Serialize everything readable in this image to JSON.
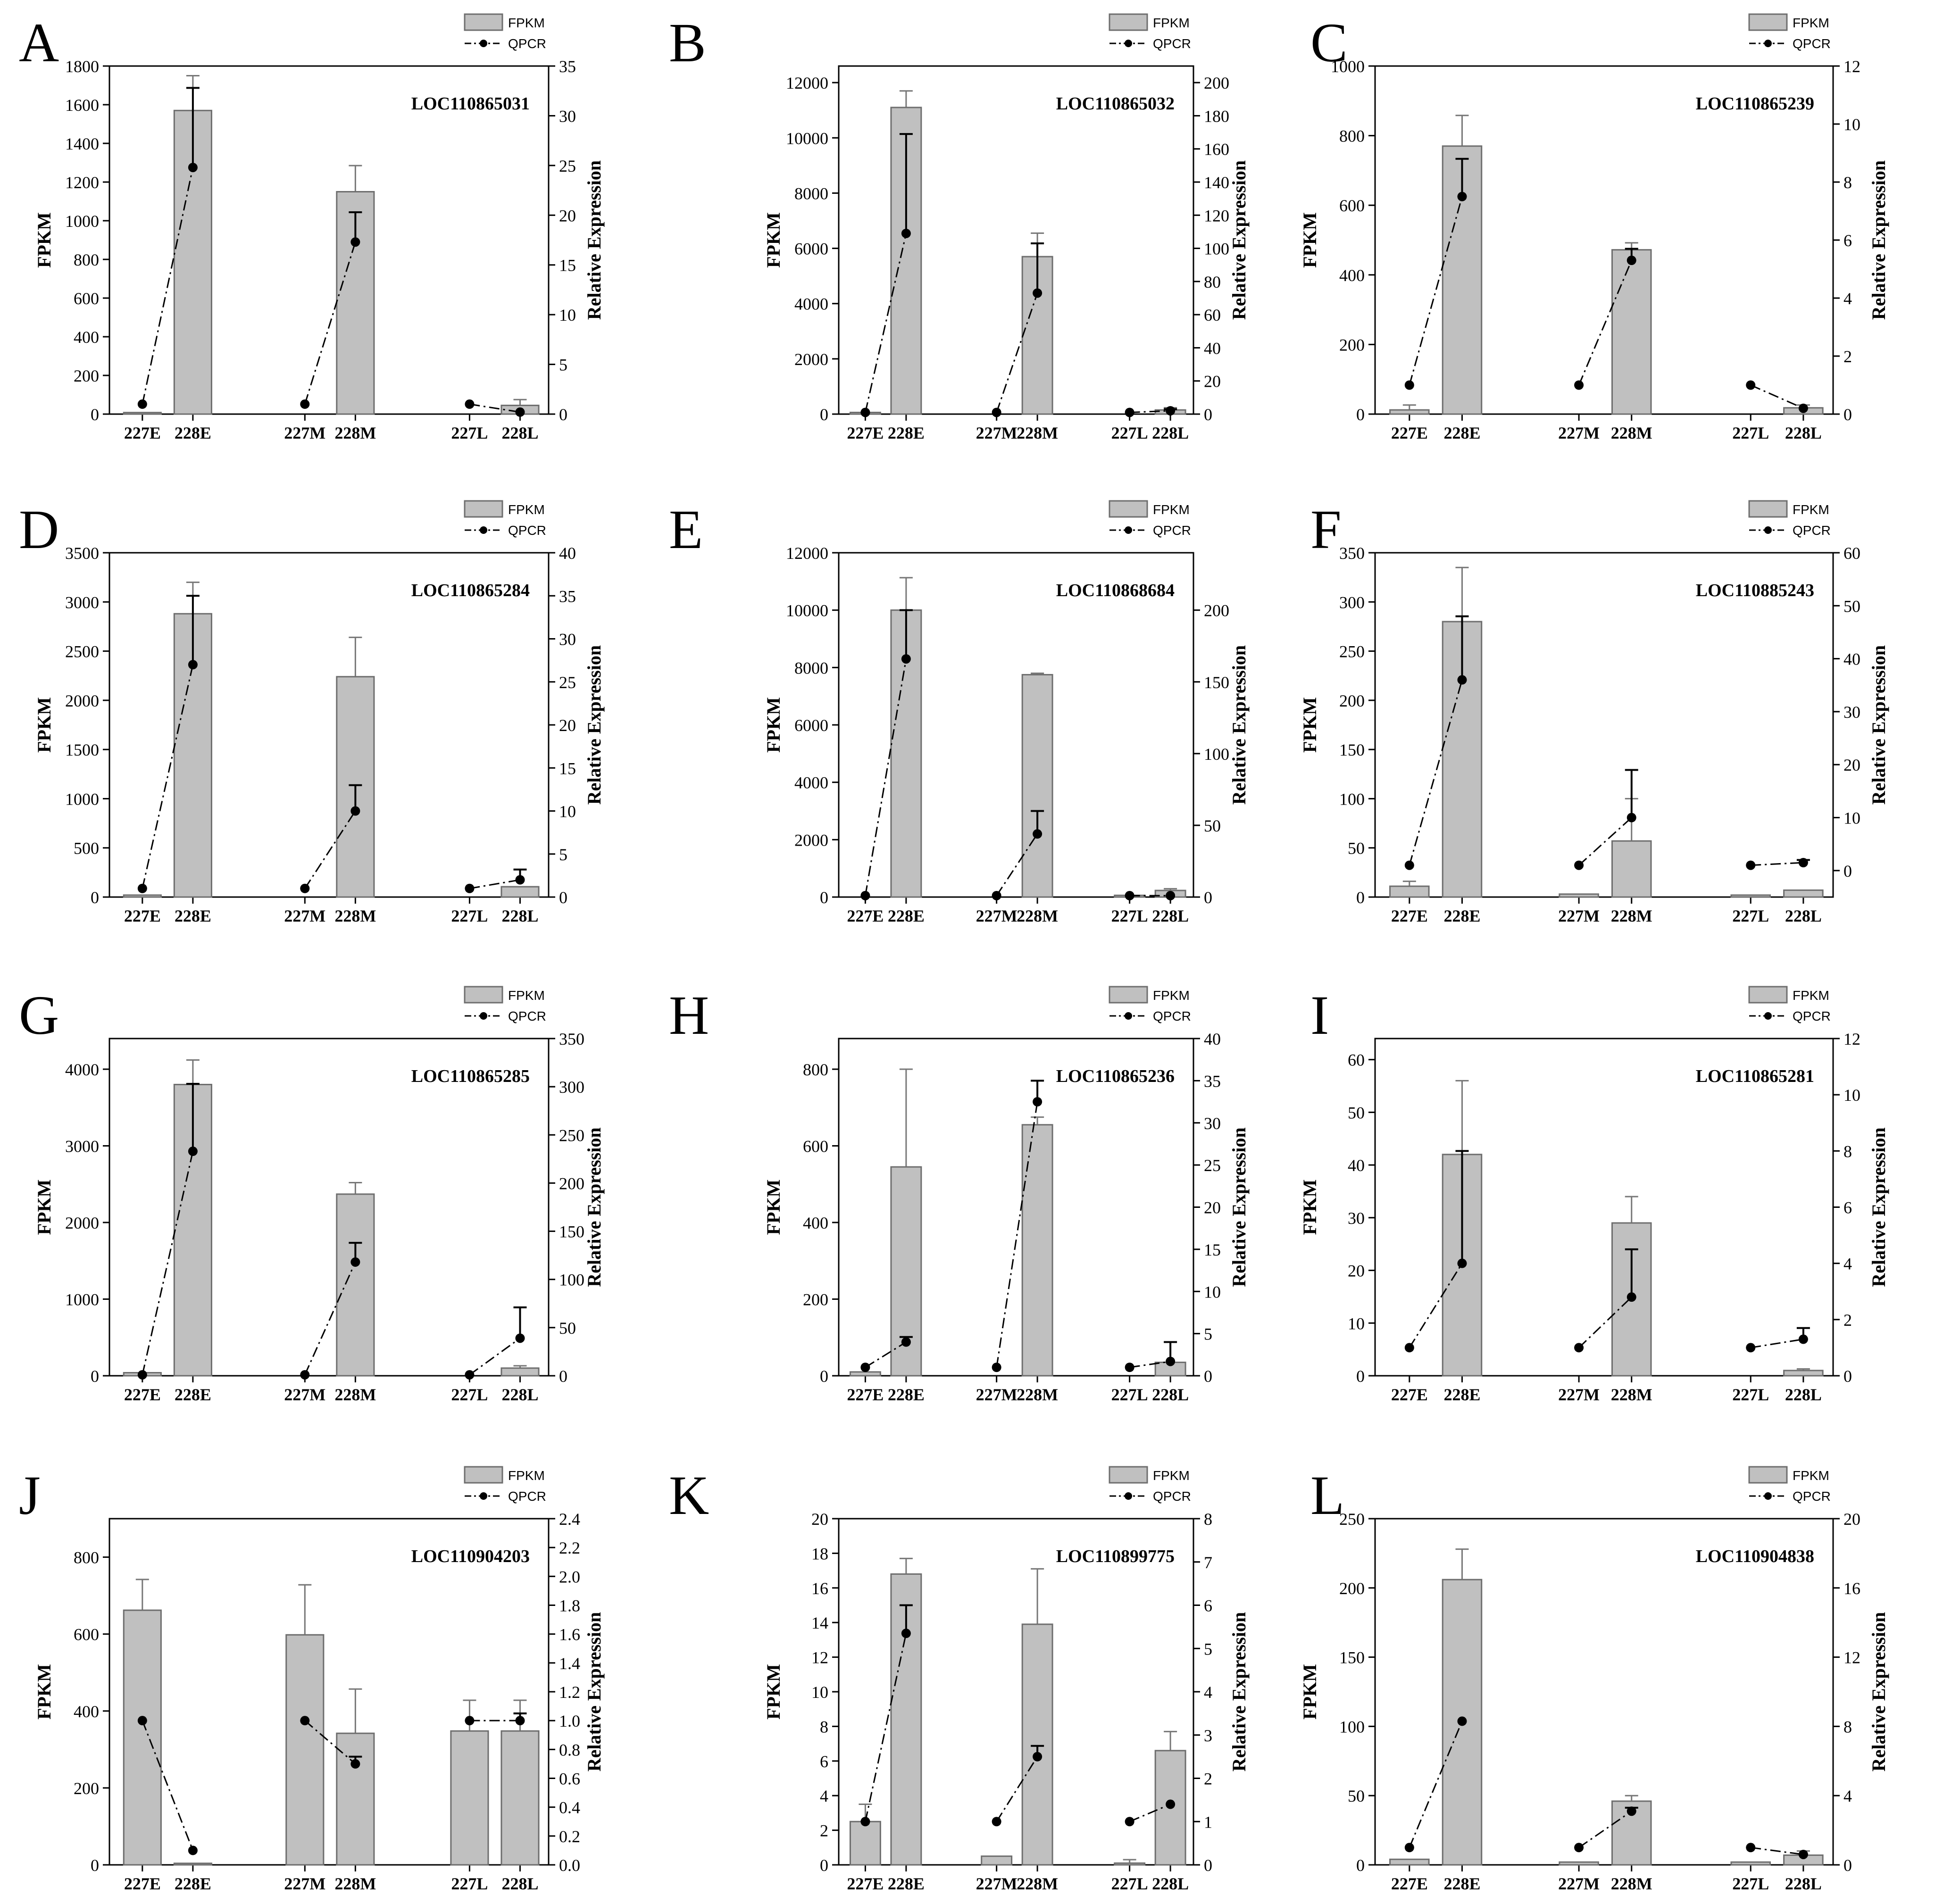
{
  "figure": {
    "legend": {
      "bar_label": "FPKM",
      "line_label": "QPCR"
    },
    "left_axis_label": "FPKM",
    "right_axis_label": "Relative Expression",
    "colors": {
      "bar_fill": "#c0c0c0",
      "bar_stroke": "#6e6e6e",
      "line": "#000000"
    }
  },
  "chart_data": [
    {
      "type": "bar",
      "panel": "A",
      "title": "LOC110865031",
      "categories": [
        "227E",
        "228E",
        "227M",
        "228M",
        "227L",
        "228L"
      ],
      "series": [
        {
          "name": "FPKM",
          "axis": "left",
          "values": [
            8,
            1570,
            0,
            1150,
            0,
            45
          ],
          "errors": [
            0,
            180,
            0,
            135,
            0,
            30
          ]
        },
        {
          "name": "QPCR",
          "axis": "right",
          "type": "line",
          "values": [
            1,
            24.8,
            1,
            17.3,
            1,
            0.2
          ],
          "errors": [
            0,
            8,
            0,
            3,
            0,
            0
          ]
        }
      ],
      "ylim_left": [
        0,
        1800
      ],
      "yticks_left": [
        0,
        200,
        400,
        600,
        800,
        1000,
        1200,
        1400,
        1600,
        1800
      ],
      "ylim_right": [
        0,
        35
      ],
      "yticks_right": [
        0,
        5,
        10,
        15,
        20,
        25,
        30,
        35
      ]
    },
    {
      "type": "bar",
      "panel": "B",
      "title": "LOC110865032",
      "categories": [
        "227E",
        "228E",
        "227M",
        "228M",
        "227L",
        "228L"
      ],
      "series": [
        {
          "name": "FPKM",
          "axis": "left",
          "values": [
            60,
            11100,
            0,
            5700,
            0,
            150
          ],
          "errors": [
            0,
            600,
            0,
            850,
            0,
            80
          ]
        },
        {
          "name": "QPCR",
          "axis": "right",
          "type": "line",
          "values": [
            1,
            109,
            1,
            73,
            1,
            2
          ],
          "errors": [
            0,
            60,
            0,
            30,
            0,
            1
          ]
        }
      ],
      "ylim_left": [
        0,
        12600
      ],
      "yticks_left": [
        0,
        2000,
        4000,
        6000,
        8000,
        10000,
        12000
      ],
      "ylim_right": [
        0,
        210
      ],
      "yticks_right": [
        0,
        20,
        40,
        60,
        80,
        100,
        120,
        140,
        160,
        180,
        200
      ]
    },
    {
      "type": "bar",
      "panel": "C",
      "title": "LOC110865239",
      "categories": [
        "227E",
        "228E",
        "227M",
        "228M",
        "227L",
        "228L"
      ],
      "series": [
        {
          "name": "FPKM",
          "axis": "left",
          "values": [
            12,
            770,
            0,
            472,
            0,
            18
          ],
          "errors": [
            14,
            88,
            0,
            20,
            0,
            8
          ]
        },
        {
          "name": "QPCR",
          "axis": "right",
          "type": "line",
          "values": [
            1,
            7.5,
            1,
            5.3,
            1,
            0.2
          ],
          "errors": [
            0,
            1.3,
            0,
            0.4,
            0,
            0
          ]
        }
      ],
      "ylim_left": [
        0,
        1000
      ],
      "yticks_left": [
        0,
        200,
        400,
        600,
        800,
        1000
      ],
      "ylim_right": [
        0,
        12
      ],
      "yticks_right": [
        0,
        2,
        4,
        6,
        8,
        10,
        12
      ]
    },
    {
      "type": "bar",
      "panel": "D",
      "title": "LOC110865284",
      "categories": [
        "227E",
        "228E",
        "227M",
        "228M",
        "227L",
        "228L"
      ],
      "series": [
        {
          "name": "FPKM",
          "axis": "left",
          "values": [
            20,
            2880,
            0,
            2240,
            0,
            105
          ],
          "errors": [
            0,
            320,
            0,
            400,
            0,
            0
          ]
        },
        {
          "name": "QPCR",
          "axis": "right",
          "type": "line",
          "values": [
            1,
            27,
            1,
            10,
            1,
            2
          ],
          "errors": [
            0,
            8,
            0,
            3,
            0,
            1.2
          ]
        }
      ],
      "ylim_left": [
        0,
        3500
      ],
      "yticks_left": [
        0,
        500,
        1000,
        1500,
        2000,
        2500,
        3000,
        3500
      ],
      "ylim_right": [
        0,
        40
      ],
      "yticks_right": [
        0,
        5,
        10,
        15,
        20,
        25,
        30,
        35,
        40
      ]
    },
    {
      "type": "bar",
      "panel": "E",
      "title": "LOC110868684",
      "categories": [
        "227E",
        "228E",
        "227M",
        "228M",
        "227L",
        "228L"
      ],
      "series": [
        {
          "name": "FPKM",
          "axis": "left",
          "values": [
            0,
            10000,
            0,
            7750,
            60,
            230
          ],
          "errors": [
            0,
            1130,
            0,
            50,
            0,
            60
          ]
        },
        {
          "name": "QPCR",
          "axis": "right",
          "type": "line",
          "values": [
            1,
            166,
            1,
            44,
            1,
            1
          ],
          "errors": [
            0,
            34,
            0,
            16,
            0,
            0
          ]
        }
      ],
      "ylim_left": [
        0,
        12000
      ],
      "yticks_left": [
        0,
        2000,
        4000,
        6000,
        8000,
        10000,
        12000
      ],
      "ylim_right": [
        0,
        240
      ],
      "yticks_right": [
        0,
        50,
        100,
        150,
        200
      ]
    },
    {
      "type": "bar",
      "panel": "F",
      "title": "LOC110885243",
      "categories": [
        "227E",
        "228E",
        "227M",
        "228M",
        "227L",
        "228L"
      ],
      "series": [
        {
          "name": "FPKM",
          "axis": "left",
          "values": [
            11,
            280,
            3,
            57,
            2,
            7
          ],
          "errors": [
            5,
            55,
            0,
            43,
            0,
            0
          ]
        },
        {
          "name": "QPCR",
          "axis": "right",
          "type": "line",
          "values": [
            1,
            36,
            1,
            10,
            1,
            1.5
          ],
          "errors": [
            0,
            12,
            0,
            9,
            0,
            0.5
          ]
        }
      ],
      "ylim_left": [
        0,
        350
      ],
      "yticks_left": [
        0,
        50,
        100,
        150,
        200,
        250,
        300,
        350
      ],
      "ylim_right": [
        -5,
        60
      ],
      "yticks_right": [
        0,
        10,
        20,
        30,
        40,
        50,
        60
      ]
    },
    {
      "type": "bar",
      "panel": "G",
      "title": "LOC110865285",
      "categories": [
        "227E",
        "228E",
        "227M",
        "228M",
        "227L",
        "228L"
      ],
      "series": [
        {
          "name": "FPKM",
          "axis": "left",
          "values": [
            40,
            3800,
            0,
            2370,
            0,
            100
          ],
          "errors": [
            0,
            320,
            0,
            150,
            0,
            30
          ]
        },
        {
          "name": "QPCR",
          "axis": "right",
          "type": "line",
          "values": [
            1,
            233,
            1,
            118,
            1,
            39
          ],
          "errors": [
            0,
            70,
            0,
            20,
            0,
            32
          ]
        }
      ],
      "ylim_left": [
        0,
        4400
      ],
      "yticks_left": [
        0,
        1000,
        2000,
        3000,
        4000
      ],
      "ylim_right": [
        0,
        350
      ],
      "yticks_right": [
        0,
        50,
        100,
        150,
        200,
        250,
        300,
        350
      ]
    },
    {
      "type": "bar",
      "panel": "H",
      "title": "LOC110865236",
      "categories": [
        "227E",
        "228E",
        "227M",
        "228M",
        "227L",
        "228L"
      ],
      "series": [
        {
          "name": "FPKM",
          "axis": "left",
          "values": [
            10,
            545,
            0,
            655,
            0,
            35
          ],
          "errors": [
            0,
            255,
            0,
            20,
            0,
            0
          ]
        },
        {
          "name": "QPCR",
          "axis": "right",
          "type": "line",
          "values": [
            1,
            4,
            1,
            32.5,
            1,
            1.7
          ],
          "errors": [
            0,
            0.6,
            0,
            2.5,
            0,
            2.3
          ]
        }
      ],
      "ylim_left": [
        0,
        880
      ],
      "yticks_left": [
        0,
        200,
        400,
        600,
        800
      ],
      "ylim_right": [
        0,
        40
      ],
      "yticks_right": [
        0,
        5,
        10,
        15,
        20,
        25,
        30,
        35,
        40
      ]
    },
    {
      "type": "bar",
      "panel": "I",
      "title": "LOC110865281",
      "categories": [
        "227E",
        "228E",
        "227M",
        "228M",
        "227L",
        "228L"
      ],
      "series": [
        {
          "name": "FPKM",
          "axis": "left",
          "values": [
            0,
            42,
            0,
            29,
            0,
            1
          ],
          "errors": [
            0,
            14,
            0,
            5,
            0,
            0.3
          ]
        },
        {
          "name": "QPCR",
          "axis": "right",
          "type": "line",
          "values": [
            1,
            4,
            1,
            2.8,
            1,
            1.3
          ],
          "errors": [
            0,
            4,
            0,
            1.7,
            0,
            0.4
          ]
        }
      ],
      "ylim_left": [
        0,
        64
      ],
      "yticks_left": [
        0,
        10,
        20,
        30,
        40,
        50,
        60
      ],
      "ylim_right": [
        0,
        12
      ],
      "yticks_right": [
        0,
        2,
        4,
        6,
        8,
        10,
        12
      ]
    },
    {
      "type": "bar",
      "panel": "J",
      "title": "LOC110904203",
      "categories": [
        "227E",
        "228E",
        "227M",
        "228M",
        "227L",
        "228L"
      ],
      "series": [
        {
          "name": "FPKM",
          "axis": "left",
          "values": [
            662,
            4,
            598,
            342,
            348,
            348
          ],
          "errors": [
            80,
            0,
            130,
            115,
            80,
            80
          ]
        },
        {
          "name": "QPCR",
          "axis": "right",
          "type": "line",
          "values": [
            1,
            0.1,
            1,
            0.7,
            1,
            1
          ],
          "errors": [
            0,
            0,
            0,
            0.05,
            0,
            0.05
          ]
        }
      ],
      "ylim_left": [
        0,
        900
      ],
      "yticks_left": [
        0,
        200,
        400,
        600,
        800
      ],
      "ylim_right": [
        0,
        2.4
      ],
      "yticks_right": [
        0.0,
        0.2,
        0.4,
        0.6,
        0.8,
        1.0,
        1.2,
        1.4,
        1.6,
        1.8,
        2.0,
        2.2,
        2.4
      ]
    },
    {
      "type": "bar",
      "panel": "K",
      "title": "LOC110899775",
      "categories": [
        "227E",
        "228E",
        "227M",
        "228M",
        "227L",
        "228L"
      ],
      "series": [
        {
          "name": "FPKM",
          "axis": "left",
          "values": [
            2.5,
            16.8,
            0.5,
            13.9,
            0.1,
            6.6
          ],
          "errors": [
            1,
            0.9,
            0,
            3.2,
            0.2,
            1.1
          ]
        },
        {
          "name": "QPCR",
          "axis": "right",
          "type": "line",
          "values": [
            1,
            5.35,
            1,
            2.5,
            1,
            1.4
          ],
          "errors": [
            0,
            0.65,
            0,
            0.25,
            0,
            0
          ]
        }
      ],
      "ylim_left": [
        0,
        20
      ],
      "yticks_left": [
        0,
        2,
        4,
        6,
        8,
        10,
        12,
        14,
        16,
        18,
        20
      ],
      "ylim_right": [
        0,
        8
      ],
      "yticks_right": [
        0,
        1,
        2,
        3,
        4,
        5,
        6,
        7,
        8
      ]
    },
    {
      "type": "bar",
      "panel": "L",
      "title": "LOC110904838",
      "categories": [
        "227E",
        "228E",
        "227M",
        "228M",
        "227L",
        "228L"
      ],
      "series": [
        {
          "name": "FPKM",
          "axis": "left",
          "values": [
            4,
            206,
            2,
            46,
            2,
            7
          ],
          "errors": [
            0,
            22,
            0,
            4,
            0,
            3
          ]
        },
        {
          "name": "QPCR",
          "axis": "right",
          "type": "line",
          "values": [
            1,
            8.3,
            1,
            3.1,
            1,
            0.6
          ],
          "errors": [
            0,
            0,
            0,
            0.2,
            0,
            0
          ]
        }
      ],
      "ylim_left": [
        0,
        250
      ],
      "yticks_left": [
        0,
        50,
        100,
        150,
        200,
        250
      ],
      "ylim_right": [
        0,
        20
      ],
      "yticks_right": [
        0,
        4,
        8,
        12,
        16,
        20
      ]
    }
  ]
}
